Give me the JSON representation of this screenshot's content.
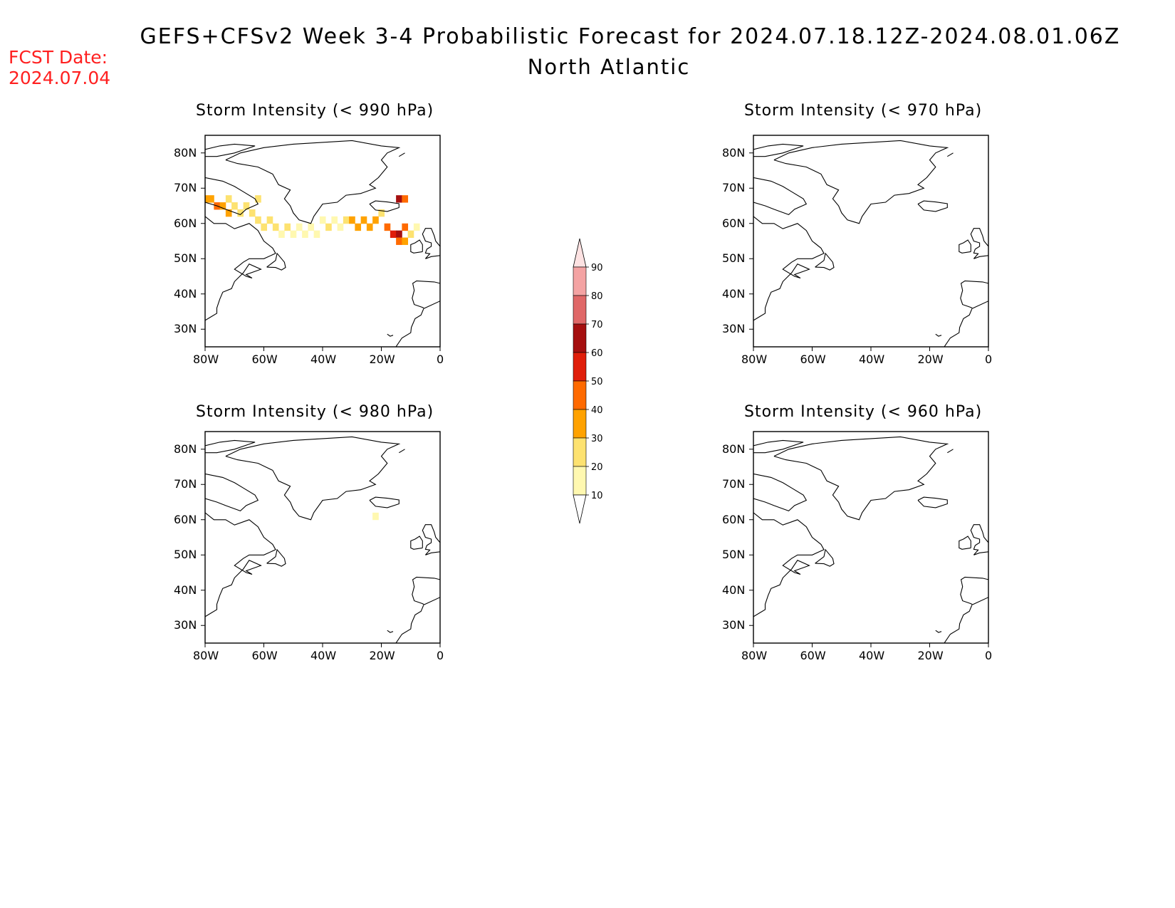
{
  "header": {
    "title": "GEFS+CFSv2 Week 3-4 Probabilistic Forecast for 2024.07.18.12Z-2024.08.01.06Z",
    "region": "North Atlantic",
    "fcst_label": "FCST Date:",
    "fcst_date": "2024.07.04"
  },
  "axes": {
    "lat_ticks": [
      "80N",
      "70N",
      "60N",
      "50N",
      "40N",
      "30N"
    ],
    "lon_ticks": [
      "80W",
      "60W",
      "40W",
      "20W",
      "0"
    ],
    "lat_range": [
      25,
      85
    ],
    "lon_range": [
      -80,
      0
    ]
  },
  "panels": [
    {
      "id": "p990",
      "title": "Storm Intensity (< 990 hPa)",
      "threshold": "990 hPa"
    },
    {
      "id": "p970",
      "title": "Storm Intensity (< 970 hPa)",
      "threshold": "970 hPa"
    },
    {
      "id": "p980",
      "title": "Storm Intensity (< 980 hPa)",
      "threshold": "980 hPa"
    },
    {
      "id": "p960",
      "title": "Storm Intensity (< 960 hPa)",
      "threshold": "960 hPa"
    }
  ],
  "colorbar": {
    "levels": [
      "90",
      "80",
      "70",
      "60",
      "50",
      "40",
      "30",
      "20",
      "10"
    ],
    "colors": [
      "#fde2e2",
      "#f4a3a3",
      "#e06868",
      "#a50f0f",
      "#e01e0a",
      "#ff6a00",
      "#ffa200",
      "#fde270",
      "#fff8b0"
    ]
  },
  "chart_data": {
    "type": "heatmap",
    "units": "probability (%)",
    "grid": "lon/lat cells",
    "p990": [
      {
        "lon": -80,
        "lat": 67,
        "v": 35
      },
      {
        "lon": -78,
        "lat": 67,
        "v": 35
      },
      {
        "lon": -76,
        "lat": 65,
        "v": 40
      },
      {
        "lon": -74,
        "lat": 65,
        "v": 35
      },
      {
        "lon": -72,
        "lat": 67,
        "v": 25
      },
      {
        "lon": -72,
        "lat": 63,
        "v": 30
      },
      {
        "lon": -70,
        "lat": 65,
        "v": 25
      },
      {
        "lon": -68,
        "lat": 63,
        "v": 25
      },
      {
        "lon": -66,
        "lat": 65,
        "v": 25
      },
      {
        "lon": -64,
        "lat": 63,
        "v": 20
      },
      {
        "lon": -62,
        "lat": 67,
        "v": 25
      },
      {
        "lon": -62,
        "lat": 61,
        "v": 20
      },
      {
        "lon": -60,
        "lat": 59,
        "v": 25
      },
      {
        "lon": -58,
        "lat": 61,
        "v": 20
      },
      {
        "lon": -56,
        "lat": 59,
        "v": 20
      },
      {
        "lon": -54,
        "lat": 57,
        "v": 15
      },
      {
        "lon": -52,
        "lat": 59,
        "v": 20
      },
      {
        "lon": -50,
        "lat": 57,
        "v": 15
      },
      {
        "lon": -48,
        "lat": 59,
        "v": 15
      },
      {
        "lon": -46,
        "lat": 57,
        "v": 15
      },
      {
        "lon": -44,
        "lat": 59,
        "v": 15
      },
      {
        "lon": -42,
        "lat": 57,
        "v": 15
      },
      {
        "lon": -40,
        "lat": 61,
        "v": 15
      },
      {
        "lon": -38,
        "lat": 59,
        "v": 20
      },
      {
        "lon": -36,
        "lat": 61,
        "v": 15
      },
      {
        "lon": -34,
        "lat": 59,
        "v": 15
      },
      {
        "lon": -32,
        "lat": 61,
        "v": 20
      },
      {
        "lon": -30,
        "lat": 61,
        "v": 35
      },
      {
        "lon": -28,
        "lat": 59,
        "v": 30
      },
      {
        "lon": -26,
        "lat": 61,
        "v": 35
      },
      {
        "lon": -24,
        "lat": 59,
        "v": 35
      },
      {
        "lon": -22,
        "lat": 61,
        "v": 35
      },
      {
        "lon": -20,
        "lat": 63,
        "v": 25
      },
      {
        "lon": -18,
        "lat": 59,
        "v": 40
      },
      {
        "lon": -16,
        "lat": 57,
        "v": 50
      },
      {
        "lon": -14,
        "lat": 57,
        "v": 60
      },
      {
        "lon": -14,
        "lat": 55,
        "v": 45
      },
      {
        "lon": -12,
        "lat": 59,
        "v": 40
      },
      {
        "lon": -12,
        "lat": 55,
        "v": 35
      },
      {
        "lon": -14,
        "lat": 67,
        "v": 60
      },
      {
        "lon": -12,
        "lat": 67,
        "v": 40
      },
      {
        "lon": -10,
        "lat": 57,
        "v": 20
      },
      {
        "lon": -8,
        "lat": 59,
        "v": 15
      }
    ],
    "p980": [
      {
        "lon": -22,
        "lat": 61,
        "v": 15
      }
    ],
    "p970": [],
    "p960": []
  }
}
